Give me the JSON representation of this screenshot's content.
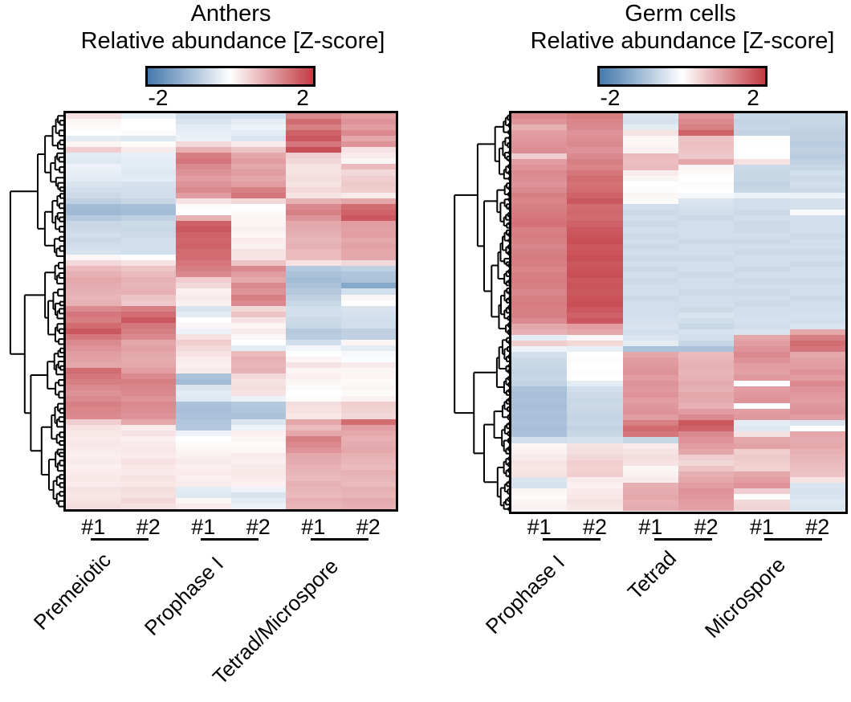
{
  "figure": {
    "background": "#ffffff",
    "panels": [
      {
        "id": "anthers",
        "title": "Anthers",
        "colorbar_label": "Relative abundance [Z-score]",
        "colorbar_min_label": "-2",
        "colorbar_max_label": "2",
        "groups": [
          {
            "name": "Premeiotic",
            "replicates": [
              "#1",
              "#2"
            ]
          },
          {
            "name": "Prophase I",
            "replicates": [
              "#1",
              "#2"
            ]
          },
          {
            "name": "Tetrad/Microspore",
            "replicates": [
              "#1",
              "#2"
            ]
          }
        ],
        "dendrogram": {
          "leaves": 88,
          "seed": 42,
          "root_split": 0.37
        }
      },
      {
        "id": "germ-cells",
        "title": "Germ cells",
        "colorbar_label": "Relative abundance [Z-score]",
        "colorbar_min_label": "-2",
        "colorbar_max_label": "2",
        "groups": [
          {
            "name": "Prophase I",
            "replicates": [
              "#1",
              "#2"
            ]
          },
          {
            "name": "Tetrad",
            "replicates": [
              "#1",
              "#2"
            ]
          },
          {
            "name": "Microspore",
            "replicates": [
              "#1",
              "#2"
            ]
          }
        ],
        "dendrogram": {
          "leaves": 128,
          "seed": 7,
          "root_split": 0.56
        }
      }
    ]
  },
  "chart_data": [
    {
      "type": "heatmap",
      "title": "Anthers",
      "legend_label": "Relative abundance [Z-score]",
      "legend_position": "top",
      "zlim": [
        -2,
        2
      ],
      "colormap": {
        "negative": "#4579ad",
        "mid": "#ffffff",
        "positive": "#c23b42"
      },
      "columns": [
        "Premeiotic #1",
        "Premeiotic #2",
        "Prophase I #1",
        "Prophase I #2",
        "Tetrad/Microspore #1",
        "Tetrad/Microspore #2"
      ],
      "rows": [
        [
          0.3,
          -0.2,
          -0.5,
          -0.5,
          1.2,
          1.0
        ],
        [
          0.1,
          0.0,
          -0.4,
          -0.3,
          1.5,
          1.1
        ],
        [
          0.05,
          0.0,
          -0.3,
          -0.2,
          1.3,
          1.0
        ],
        [
          0.0,
          0.05,
          -0.25,
          -0.3,
          1.6,
          1.2
        ],
        [
          -0.3,
          -0.35,
          -0.2,
          -0.4,
          1.7,
          0.9
        ],
        [
          0.1,
          0.05,
          0.4,
          0.2,
          1.4,
          1.1
        ],
        [
          0.5,
          0.2,
          0.8,
          0.6,
          1.8,
          0.3
        ],
        [
          -0.3,
          -0.25,
          1.3,
          0.9,
          0.5,
          0.2
        ],
        [
          -0.35,
          -0.3,
          1.4,
          1.0,
          0.4,
          0.1
        ],
        [
          -0.2,
          -0.3,
          1.2,
          0.9,
          0.3,
          0.7
        ],
        [
          -0.25,
          -0.35,
          1.1,
          1.0,
          0.3,
          0.4
        ],
        [
          -0.3,
          -0.3,
          1.0,
          0.9,
          0.35,
          0.5
        ],
        [
          -0.4,
          -0.45,
          1.1,
          1.0,
          0.3,
          0.55
        ],
        [
          -0.5,
          -0.5,
          1.2,
          1.3,
          0.4,
          0.5
        ],
        [
          -0.55,
          -0.5,
          1.0,
          1.4,
          0.3,
          0.2
        ],
        [
          -0.7,
          -0.6,
          0.3,
          0.4,
          0.8,
          0.9
        ],
        [
          -1.0,
          -0.95,
          0.05,
          0.0,
          1.2,
          1.5
        ],
        [
          -1.05,
          -1.0,
          0.0,
          0.05,
          1.3,
          1.6
        ],
        [
          -0.8,
          -0.7,
          0.8,
          0.1,
          1.1,
          1.7
        ],
        [
          -0.6,
          -0.55,
          1.6,
          0.1,
          0.9,
          1.0
        ],
        [
          -0.55,
          -0.6,
          1.7,
          0.15,
          0.85,
          0.95
        ],
        [
          -0.5,
          -0.55,
          1.6,
          0.1,
          0.8,
          1.0
        ],
        [
          -0.55,
          -0.5,
          1.55,
          0.2,
          0.75,
          0.9
        ],
        [
          -0.5,
          -0.5,
          1.6,
          0.15,
          0.8,
          0.95
        ],
        [
          -0.45,
          -0.5,
          1.5,
          0.3,
          0.7,
          0.9
        ],
        [
          0.1,
          0.0,
          1.5,
          0.3,
          0.7,
          0.9
        ],
        [
          0.4,
          0.3,
          1.4,
          0.6,
          0.3,
          0.4
        ],
        [
          0.7,
          0.6,
          1.3,
          1.2,
          -0.8,
          -0.7
        ],
        [
          0.8,
          0.7,
          1.2,
          1.0,
          -0.9,
          -0.85
        ],
        [
          0.9,
          0.8,
          0.5,
          0.9,
          -1.0,
          -0.9
        ],
        [
          0.85,
          0.75,
          0.4,
          1.2,
          -0.9,
          -1.3
        ],
        [
          0.8,
          0.8,
          0.15,
          1.1,
          -0.8,
          -0.5
        ],
        [
          0.75,
          0.6,
          0.2,
          1.3,
          -0.7,
          0.1
        ],
        [
          0.8,
          0.55,
          0.15,
          1.2,
          -0.6,
          0.0
        ],
        [
          1.2,
          1.3,
          -0.4,
          0.4,
          -0.5,
          -0.4
        ],
        [
          1.4,
          1.5,
          -0.3,
          0.6,
          -0.5,
          -0.45
        ],
        [
          1.3,
          1.7,
          0.0,
          0.3,
          -0.55,
          -0.5
        ],
        [
          1.5,
          1.4,
          0.1,
          0.1,
          -0.6,
          -0.5
        ],
        [
          1.7,
          1.3,
          -0.2,
          0.2,
          -0.8,
          -0.7
        ],
        [
          1.4,
          1.2,
          0.3,
          0.1,
          -0.75,
          -0.7
        ],
        [
          1.2,
          0.9,
          0.5,
          0.0,
          -0.5,
          0.1
        ],
        [
          1.1,
          0.95,
          0.4,
          -0.3,
          -0.15,
          -0.3
        ],
        [
          1.0,
          0.9,
          0.3,
          0.7,
          0.0,
          -0.1
        ],
        [
          0.95,
          0.85,
          0.2,
          0.8,
          0.1,
          -0.05
        ],
        [
          0.9,
          0.9,
          0.15,
          0.75,
          0.3,
          0.2
        ],
        [
          1.5,
          1.0,
          0.2,
          0.8,
          0.1,
          0.1
        ],
        [
          1.4,
          1.2,
          -0.9,
          0.4,
          0.15,
          0.1
        ],
        [
          1.3,
          1.3,
          -1.0,
          0.3,
          0.1,
          0.05
        ],
        [
          1.2,
          1.25,
          -0.4,
          0.35,
          0.05,
          0.1
        ],
        [
          1.1,
          1.2,
          -0.3,
          0.3,
          0.0,
          0.05
        ],
        [
          1.2,
          1.1,
          -0.35,
          -0.2,
          0.05,
          0.15
        ],
        [
          1.3,
          1.2,
          -0.9,
          -0.8,
          0.35,
          0.5
        ],
        [
          1.25,
          1.15,
          -0.95,
          -0.85,
          0.3,
          0.45
        ],
        [
          1.2,
          1.1,
          -0.9,
          -0.9,
          0.25,
          0.4
        ],
        [
          0.5,
          0.9,
          -0.85,
          -0.4,
          0.9,
          1.5
        ],
        [
          0.3,
          0.2,
          -0.8,
          -0.2,
          0.7,
          1.0
        ],
        [
          0.25,
          0.3,
          -0.2,
          0.15,
          0.9,
          0.9
        ],
        [
          0.2,
          0.15,
          0.0,
          0.1,
          1.3,
          0.8
        ],
        [
          0.25,
          0.2,
          0.05,
          0.05,
          1.2,
          0.85
        ],
        [
          0.2,
          0.25,
          0.1,
          0.1,
          1.1,
          0.9
        ],
        [
          0.15,
          0.2,
          0.15,
          0.2,
          0.9,
          0.8
        ],
        [
          0.2,
          0.3,
          0.2,
          0.15,
          0.85,
          0.75
        ],
        [
          0.15,
          0.25,
          0.15,
          0.2,
          0.8,
          0.7
        ],
        [
          0.2,
          0.2,
          0.2,
          0.25,
          0.75,
          0.8
        ],
        [
          0.25,
          0.3,
          0.15,
          0.2,
          0.7,
          0.75
        ],
        [
          0.2,
          0.25,
          0.2,
          0.15,
          0.8,
          0.7
        ],
        [
          0.3,
          0.35,
          -0.3,
          -0.2,
          0.75,
          0.8
        ],
        [
          0.25,
          0.3,
          -0.35,
          -0.4,
          0.7,
          0.75
        ],
        [
          0.3,
          0.4,
          0.1,
          -0.3,
          0.8,
          0.85
        ],
        [
          0.35,
          0.3,
          0.2,
          -0.2,
          0.75,
          0.8
        ]
      ]
    },
    {
      "type": "heatmap",
      "title": "Germ cells",
      "legend_label": "Relative abundance [Z-score]",
      "legend_position": "top",
      "zlim": [
        -2,
        2
      ],
      "colormap": {
        "negative": "#4579ad",
        "mid": "#ffffff",
        "positive": "#c23b42"
      },
      "columns": [
        "Prophase I #1",
        "Prophase I #2",
        "Tetrad #1",
        "Tetrad #2",
        "Microspore #1",
        "Microspore #2"
      ],
      "rows": [
        [
          1.2,
          1.3,
          -0.4,
          1.1,
          -0.6,
          -0.6
        ],
        [
          1.1,
          1.25,
          -0.45,
          1.2,
          -0.65,
          -0.6
        ],
        [
          0.8,
          1.2,
          -0.3,
          1.3,
          -0.6,
          -0.65
        ],
        [
          1.0,
          1.1,
          0.3,
          1.6,
          -0.65,
          -0.7
        ],
        [
          1.05,
          1.15,
          0.1,
          0.6,
          0.0,
          -0.7
        ],
        [
          1.1,
          1.2,
          0.1,
          0.65,
          -0.02,
          -0.75
        ],
        [
          1.15,
          1.1,
          0.15,
          0.6,
          0.0,
          -0.7
        ],
        [
          0.5,
          1.2,
          0.7,
          0.55,
          -0.03,
          -0.75
        ],
        [
          1.0,
          1.3,
          0.65,
          0.9,
          0.3,
          -0.7
        ],
        [
          1.1,
          1.25,
          0.7,
          0.1,
          -0.55,
          -0.6
        ],
        [
          1.2,
          1.4,
          0.2,
          0.05,
          -0.6,
          -0.5
        ],
        [
          1.15,
          1.5,
          0.1,
          0.0,
          -0.6,
          -0.55
        ],
        [
          1.1,
          1.45,
          0.0,
          0.05,
          -0.65,
          -0.5
        ],
        [
          1.2,
          1.5,
          -0.05,
          0.0,
          -0.6,
          -0.55
        ],
        [
          1.3,
          1.6,
          0.1,
          -0.1,
          -0.2,
          -0.2
        ],
        [
          1.25,
          1.7,
          0.05,
          -0.4,
          -0.5,
          -0.45
        ],
        [
          1.3,
          1.5,
          -0.5,
          -0.45,
          -0.5,
          -0.45
        ],
        [
          1.35,
          1.55,
          -0.55,
          -0.5,
          -0.55,
          -0.1
        ],
        [
          1.4,
          1.5,
          -0.5,
          -0.55,
          -0.5,
          -0.5
        ],
        [
          1.45,
          1.6,
          -0.55,
          -0.5,
          -0.55,
          -0.5
        ],
        [
          1.3,
          1.7,
          -0.5,
          -0.5,
          -0.55,
          -0.5
        ],
        [
          1.35,
          1.75,
          -0.55,
          -0.5,
          -0.5,
          -0.55
        ],
        [
          1.3,
          1.8,
          -0.5,
          -0.55,
          -0.55,
          -0.5
        ],
        [
          1.25,
          1.7,
          -0.55,
          -0.5,
          -0.5,
          -0.5
        ],
        [
          1.3,
          1.75,
          -0.5,
          -0.5,
          -0.55,
          -0.55
        ],
        [
          1.35,
          1.8,
          -0.55,
          -0.55,
          -0.5,
          -0.5
        ],
        [
          1.3,
          1.7,
          -0.5,
          -0.5,
          -0.5,
          -0.55
        ],
        [
          1.25,
          1.75,
          -0.55,
          -0.5,
          -0.55,
          -0.5
        ],
        [
          1.3,
          1.8,
          -0.5,
          -0.55,
          -0.5,
          -0.5
        ],
        [
          1.35,
          1.7,
          -0.55,
          -0.5,
          -0.55,
          -0.55
        ],
        [
          1.3,
          1.75,
          -0.5,
          -0.5,
          -0.5,
          -0.5
        ],
        [
          1.25,
          1.7,
          -0.5,
          -0.55,
          -0.55,
          -0.5
        ],
        [
          1.3,
          1.75,
          -0.55,
          -0.5,
          -0.5,
          -0.55
        ],
        [
          1.35,
          1.8,
          -0.5,
          -0.5,
          -0.55,
          -0.5
        ],
        [
          1.3,
          1.7,
          -0.5,
          -0.55,
          -0.5,
          -0.5
        ],
        [
          1.3,
          1.6,
          -0.5,
          -0.4,
          -0.5,
          -0.45
        ],
        [
          1.2,
          1.7,
          -0.45,
          -0.5,
          -0.45,
          -0.5
        ],
        [
          0.9,
          1.0,
          -0.4,
          -0.6,
          -0.5,
          -0.4
        ],
        [
          0.8,
          0.9,
          -0.5,
          -0.45,
          -0.4,
          0.9
        ],
        [
          -0.3,
          0.1,
          -0.4,
          -0.5,
          0.9,
          1.3
        ],
        [
          0.5,
          0.4,
          -0.3,
          -0.6,
          1.0,
          1.5
        ],
        [
          -0.2,
          -0.25,
          -0.9,
          -0.9,
          1.1,
          1.4
        ],
        [
          -0.5,
          0.0,
          0.9,
          0.7,
          1.2,
          0.9
        ],
        [
          -0.55,
          0.05,
          1.0,
          0.75,
          1.1,
          0.95
        ],
        [
          -0.6,
          0.0,
          1.05,
          0.8,
          1.0,
          1.0
        ],
        [
          -0.65,
          -0.05,
          1.1,
          0.75,
          0.95,
          1.1
        ],
        [
          -0.6,
          0.0,
          1.0,
          0.8,
          1.05,
          1.0
        ],
        [
          -0.65,
          -0.3,
          1.1,
          0.85,
          0.0,
          1.2
        ],
        [
          -0.9,
          -0.5,
          1.05,
          0.8,
          1.0,
          1.1
        ],
        [
          -0.95,
          -0.55,
          1.1,
          0.9,
          1.05,
          1.05
        ],
        [
          -0.9,
          -0.6,
          1.0,
          0.85,
          1.1,
          1.0
        ],
        [
          -0.95,
          -0.55,
          1.05,
          0.8,
          0.0,
          1.05
        ],
        [
          -0.9,
          -0.6,
          1.1,
          1.0,
          1.0,
          1.1
        ],
        [
          -0.95,
          -0.65,
          1.0,
          1.2,
          1.05,
          1.0
        ],
        [
          -0.9,
          -0.6,
          1.3,
          1.7,
          -0.3,
          -0.4
        ],
        [
          -0.95,
          -0.65,
          1.5,
          1.6,
          -0.35,
          0.0
        ],
        [
          -0.9,
          -0.6,
          1.4,
          1.2,
          0.3,
          0.9
        ],
        [
          -0.5,
          -0.45,
          -0.6,
          1.1,
          0.9,
          0.85
        ],
        [
          0.1,
          0.3,
          0.2,
          1.0,
          0.95,
          0.9
        ],
        [
          0.15,
          0.35,
          0.3,
          0.9,
          0.5,
          0.8
        ],
        [
          0.2,
          0.4,
          0.35,
          0.5,
          0.55,
          0.75
        ],
        [
          0.3,
          0.5,
          0.3,
          0.4,
          0.5,
          0.7
        ],
        [
          0.25,
          0.45,
          0.1,
          0.6,
          0.45,
          0.65
        ],
        [
          0.3,
          0.5,
          0.15,
          0.8,
          0.9,
          0.6
        ],
        [
          -0.4,
          0.2,
          0.2,
          0.9,
          1.0,
          0.3
        ],
        [
          -0.45,
          0.15,
          0.8,
          1.0,
          1.1,
          -0.4
        ],
        [
          0.1,
          0.2,
          0.85,
          1.1,
          0.5,
          -0.45
        ],
        [
          0.05,
          0.25,
          0.9,
          1.05,
          0.0,
          -0.4
        ],
        [
          0.1,
          0.3,
          0.8,
          1.0,
          0.4,
          -0.35
        ],
        [
          0.15,
          0.25,
          0.85,
          0.95,
          0.45,
          -0.4
        ]
      ]
    }
  ]
}
